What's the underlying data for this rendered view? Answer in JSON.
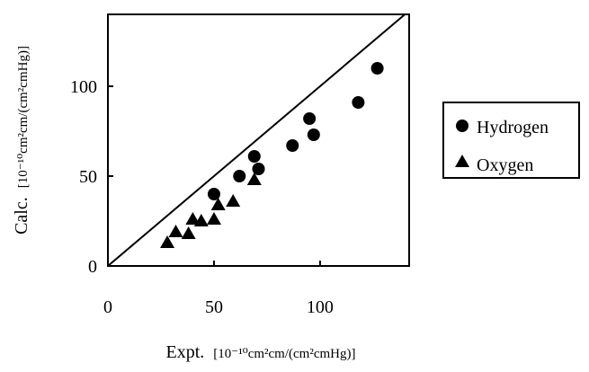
{
  "chart_data": {
    "type": "scatter",
    "title": "",
    "xlabel": {
      "main": "Expt.",
      "unit": "[10⁻¹⁰cm²cm/(cm²cmHg)]"
    },
    "ylabel": {
      "main": "Calc.",
      "unit": "[10⁻¹⁰cm²cm/(cm²cmHg)]"
    },
    "xlim": [
      0,
      142
    ],
    "ylim": [
      0,
      140
    ],
    "x_ticks": [
      0,
      50,
      100
    ],
    "y_ticks": [
      0,
      50,
      100
    ],
    "reference_line": "y = x",
    "grid": false,
    "legend_position": "right",
    "series": [
      {
        "name": "Hydrogen",
        "marker": "circle",
        "color": "#000000",
        "points": [
          {
            "x": 50,
            "y": 40
          },
          {
            "x": 62,
            "y": 50
          },
          {
            "x": 69,
            "y": 61
          },
          {
            "x": 71,
            "y": 54
          },
          {
            "x": 87,
            "y": 67
          },
          {
            "x": 95,
            "y": 82
          },
          {
            "x": 97,
            "y": 73
          },
          {
            "x": 118,
            "y": 91
          },
          {
            "x": 127,
            "y": 110
          }
        ]
      },
      {
        "name": "Oxygen",
        "marker": "triangle",
        "color": "#000000",
        "points": [
          {
            "x": 28,
            "y": 13
          },
          {
            "x": 32,
            "y": 19
          },
          {
            "x": 38,
            "y": 18
          },
          {
            "x": 40,
            "y": 26
          },
          {
            "x": 44,
            "y": 25
          },
          {
            "x": 50,
            "y": 26
          },
          {
            "x": 52,
            "y": 34
          },
          {
            "x": 59,
            "y": 36
          },
          {
            "x": 69,
            "y": 48
          }
        ]
      }
    ]
  }
}
